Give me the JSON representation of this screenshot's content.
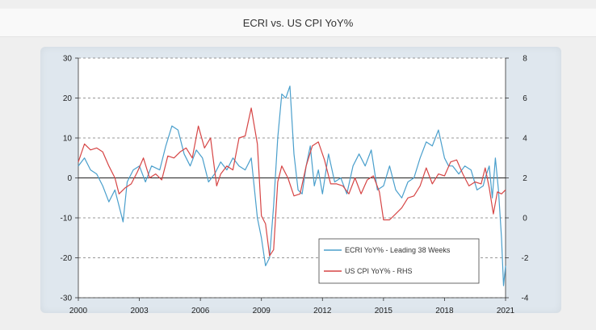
{
  "header": {
    "title": "ECRI vs. US CPI YoY%"
  },
  "chart_data": {
    "type": "line",
    "title": "ECRI vs. US CPI YoY%",
    "xlabel": "",
    "ylabel": "",
    "x_ticks": [
      "2000",
      "2003",
      "2006",
      "2009",
      "2012",
      "2015",
      "2018",
      "2021"
    ],
    "xlim": [
      2000,
      2021
    ],
    "ylim_left": [
      -30,
      30
    ],
    "ylim_right": [
      -4,
      8
    ],
    "y_ticks_left": [
      30,
      20,
      10,
      0,
      -10,
      -20,
      -30
    ],
    "y_ticks_right": [
      8,
      6,
      4,
      2,
      0,
      -2,
      -4
    ],
    "grid": "horizontal dashed",
    "legend_position": "bottom-right",
    "series": [
      {
        "name": "ECRI YoY% - Leading 38 Weeks",
        "axis": "left",
        "color": "#4a9fcc",
        "x": [
          2000.0,
          2000.3,
          2000.6,
          2000.9,
          2001.2,
          2001.5,
          2001.8,
          2002.0,
          2002.2,
          2002.4,
          2002.7,
          2003.0,
          2003.3,
          2003.6,
          2004.0,
          2004.3,
          2004.6,
          2004.9,
          2005.2,
          2005.5,
          2005.8,
          2006.1,
          2006.4,
          2006.7,
          2007.0,
          2007.3,
          2007.6,
          2007.9,
          2008.2,
          2008.5,
          2008.8,
          2009.0,
          2009.2,
          2009.4,
          2009.6,
          2009.8,
          2010.0,
          2010.2,
          2010.4,
          2010.6,
          2010.8,
          2011.0,
          2011.2,
          2011.4,
          2011.6,
          2011.8,
          2012.0,
          2012.3,
          2012.6,
          2012.9,
          2013.2,
          2013.5,
          2013.8,
          2014.1,
          2014.4,
          2014.7,
          2015.0,
          2015.3,
          2015.6,
          2015.9,
          2016.2,
          2016.5,
          2016.8,
          2017.1,
          2017.4,
          2017.7,
          2018.0,
          2018.2,
          2018.4,
          2018.7,
          2019.0,
          2019.3,
          2019.6,
          2019.9,
          2020.0,
          2020.2,
          2020.35,
          2020.5,
          2020.65,
          2020.8,
          2020.9,
          2021.0
        ],
        "values": [
          3,
          5,
          2,
          1,
          -2,
          -6,
          -3,
          -7,
          -11,
          -1,
          2,
          3,
          -1,
          3,
          2,
          8,
          13,
          12,
          6,
          3,
          7,
          5,
          -1,
          1,
          4,
          2,
          5,
          3,
          2,
          5,
          -10,
          -15,
          -22,
          -20,
          -7,
          10,
          21,
          20,
          23,
          6,
          -3,
          -4,
          3,
          8,
          -2,
          2,
          -4,
          6,
          -1,
          0,
          -4,
          3,
          6,
          3,
          7,
          -3,
          -2,
          3,
          -3,
          -5,
          -1,
          0,
          5,
          9,
          8,
          12,
          5,
          3,
          3,
          1,
          3,
          2,
          -3,
          -2,
          0,
          3,
          -5,
          5,
          -3,
          -15,
          -27,
          -22
        ]
      },
      {
        "name": "US CPI YoY% - RHS",
        "axis": "right",
        "color": "#d64545",
        "x": [
          2000.0,
          2000.3,
          2000.6,
          2000.9,
          2001.2,
          2001.5,
          2001.8,
          2002.0,
          2002.3,
          2002.6,
          2002.9,
          2003.2,
          2003.5,
          2003.8,
          2004.1,
          2004.4,
          2004.7,
          2005.0,
          2005.3,
          2005.6,
          2005.9,
          2006.2,
          2006.5,
          2006.8,
          2007.0,
          2007.3,
          2007.6,
          2007.9,
          2008.2,
          2008.5,
          2008.8,
          2009.0,
          2009.2,
          2009.4,
          2009.6,
          2009.8,
          2010.0,
          2010.3,
          2010.6,
          2010.9,
          2011.2,
          2011.5,
          2011.8,
          2012.1,
          2012.4,
          2012.7,
          2013.0,
          2013.3,
          2013.6,
          2013.9,
          2014.2,
          2014.5,
          2014.8,
          2015.0,
          2015.3,
          2015.6,
          2015.9,
          2016.2,
          2016.5,
          2016.8,
          2017.1,
          2017.4,
          2017.7,
          2018.0,
          2018.3,
          2018.6,
          2018.9,
          2019.2,
          2019.5,
          2019.8,
          2020.0,
          2020.2,
          2020.4,
          2020.6,
          2020.8,
          2021.0
        ],
        "values": [
          2.8,
          3.7,
          3.4,
          3.5,
          3.3,
          2.6,
          2.0,
          1.2,
          1.5,
          1.7,
          2.3,
          3.0,
          2.0,
          2.2,
          1.9,
          3.1,
          3.0,
          3.3,
          3.5,
          3.0,
          4.6,
          3.5,
          4.0,
          1.6,
          2.2,
          2.6,
          2.4,
          4.0,
          4.1,
          5.5,
          3.7,
          0.1,
          -0.3,
          -1.9,
          -1.6,
          1.8,
          2.6,
          2.0,
          1.1,
          1.2,
          2.6,
          3.6,
          3.8,
          2.9,
          1.7,
          1.7,
          1.6,
          1.2,
          2.0,
          1.2,
          1.9,
          2.1,
          1.3,
          -0.1,
          -0.1,
          0.2,
          0.5,
          1.0,
          1.1,
          1.6,
          2.5,
          1.7,
          2.2,
          2.1,
          2.8,
          2.9,
          2.2,
          1.6,
          1.8,
          1.7,
          2.5,
          1.5,
          0.2,
          1.3,
          1.2,
          1.4
        ]
      }
    ]
  }
}
